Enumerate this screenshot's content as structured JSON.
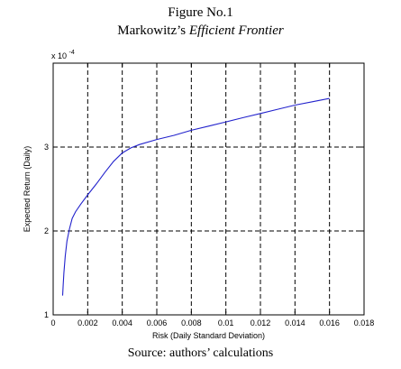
{
  "figure": {
    "title_line1": "Figure No.1",
    "title_line2_prefix": "Markowitz’s ",
    "title_line2_italic": "Efficient Frontier",
    "source": "Source: authors’ calculations"
  },
  "chart_data": {
    "type": "line",
    "title": "Figure No.1 Markowitz’s Efficient Frontier",
    "xlabel": "Risk (Daily Standard Deviation)",
    "ylabel": "Expected Return (Daily)",
    "y_multiplier_label": "x 10",
    "y_multiplier_exponent": "-4",
    "xlim": [
      0,
      0.018
    ],
    "ylim": [
      1,
      4
    ],
    "xticks": [
      0,
      0.002,
      0.004,
      0.006,
      0.008,
      0.01,
      0.012,
      0.014,
      0.016,
      0.018
    ],
    "xtick_labels": [
      "0",
      "0.002",
      "0.004",
      "0.006",
      "0.008",
      "0.01",
      "0.012",
      "0.014",
      "0.016",
      "0.018"
    ],
    "yticks": [
      1,
      2,
      3
    ],
    "ytick_labels": [
      "1",
      "2",
      "3"
    ],
    "grid": true,
    "line_color": "#2222cc",
    "series": [
      {
        "x": [
          0.00055,
          0.00058,
          0.00062,
          0.0007,
          0.0008,
          0.00095,
          0.0011,
          0.0013,
          0.0016,
          0.002,
          0.0025,
          0.003,
          0.0035,
          0.004,
          0.0045,
          0.005,
          0.006,
          0.007,
          0.008,
          0.009,
          0.01,
          0.011,
          0.012,
          0.013,
          0.014,
          0.015,
          0.016
        ],
        "y": [
          1.23,
          1.35,
          1.5,
          1.7,
          1.88,
          2.03,
          2.15,
          2.23,
          2.32,
          2.43,
          2.56,
          2.7,
          2.83,
          2.93,
          2.99,
          3.03,
          3.09,
          3.14,
          3.2,
          3.25,
          3.3,
          3.35,
          3.4,
          3.45,
          3.5,
          3.54,
          3.58
        ]
      }
    ]
  }
}
